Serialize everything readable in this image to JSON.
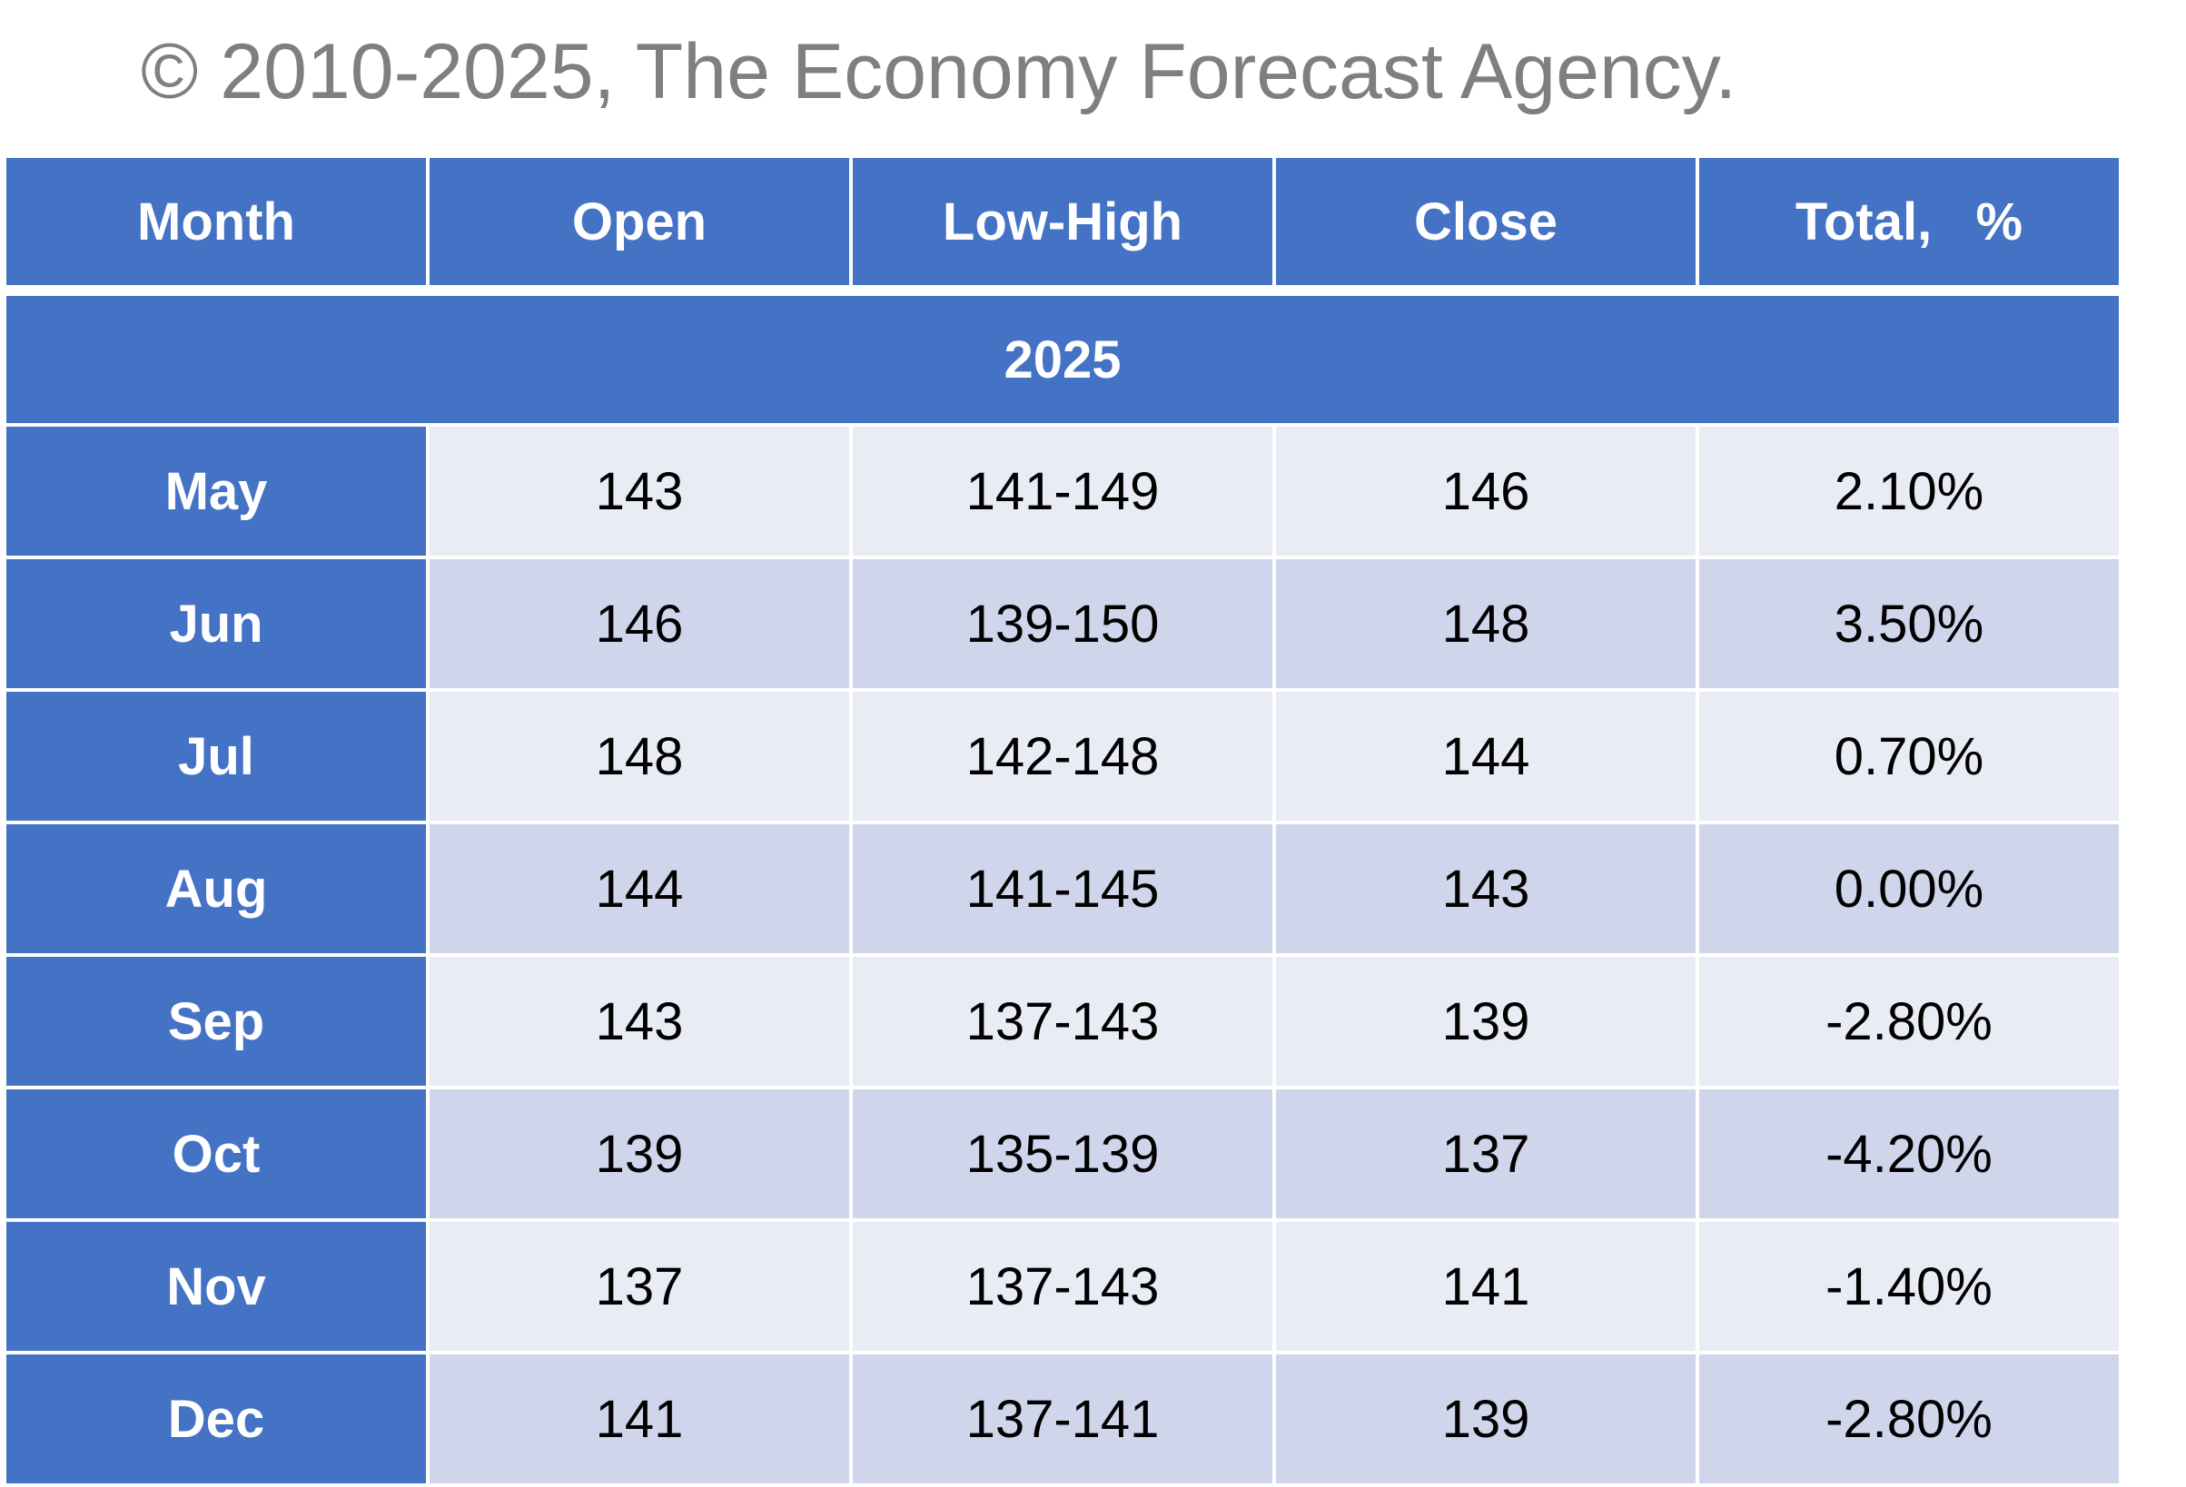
{
  "header": {
    "copyright": "© 2010-2025, The Economy Forecast Agency."
  },
  "colors": {
    "header_bg": "#4472c4",
    "row_light": "#e9ebf5",
    "row_dark": "#cfd5ea",
    "text_muted": "#7f7f7f"
  },
  "chart_data": {
    "type": "table",
    "columns": [
      "Month",
      "Open",
      "Low-High",
      "Close",
      "Total,   %"
    ],
    "group_label": "2025",
    "rows": [
      {
        "month": "May",
        "open": "143",
        "low_high": "141-149",
        "close": "146",
        "total": "2.10%"
      },
      {
        "month": "Jun",
        "open": "146",
        "low_high": "139-150",
        "close": "148",
        "total": "3.50%"
      },
      {
        "month": "Jul",
        "open": "148",
        "low_high": "142-148",
        "close": "144",
        "total": "0.70%"
      },
      {
        "month": "Aug",
        "open": "144",
        "low_high": "141-145",
        "close": "143",
        "total": "0.00%"
      },
      {
        "month": "Sep",
        "open": "143",
        "low_high": "137-143",
        "close": "139",
        "total": "-2.80%"
      },
      {
        "month": "Oct",
        "open": "139",
        "low_high": "135-139",
        "close": "137",
        "total": "-4.20%"
      },
      {
        "month": "Nov",
        "open": "137",
        "low_high": "137-143",
        "close": "141",
        "total": "-1.40%"
      },
      {
        "month": "Dec",
        "open": "141",
        "low_high": "137-141",
        "close": "139",
        "total": "-2.80%"
      }
    ]
  }
}
